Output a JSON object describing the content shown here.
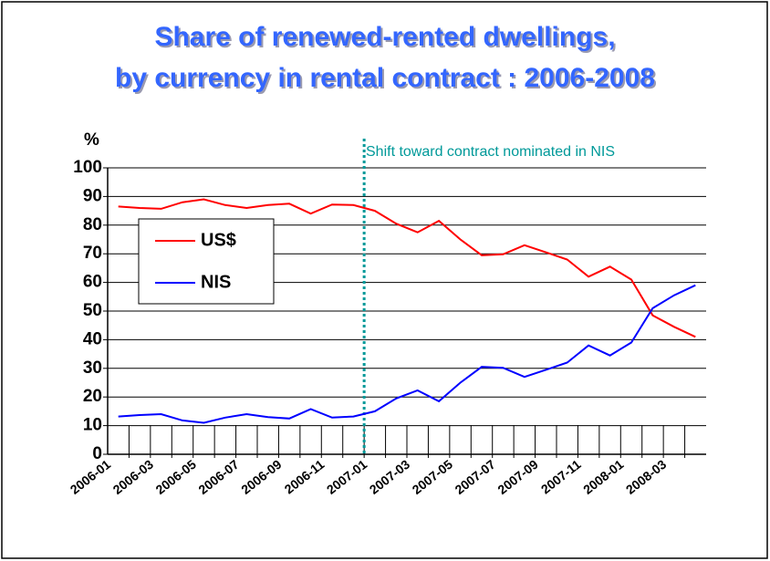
{
  "chart_data": {
    "type": "line",
    "title_lines": [
      "Share of renewed-rented dwellings,",
      "by currency in rental contract : 2006-2008"
    ],
    "y_label": "%",
    "annotation": "Shift toward contract nominated in NIS",
    "categories": [
      "2006-01",
      null,
      "2006-03",
      null,
      "2006-05",
      null,
      "2006-07",
      null,
      "2006-09",
      null,
      "2006-11",
      null,
      "2007-01",
      null,
      "2007-03",
      null,
      "2007-05",
      null,
      "2007-07",
      null,
      "2007-09",
      null,
      "2007-11",
      null,
      "2008-01",
      null,
      "2008-03",
      null
    ],
    "series": [
      {
        "name": "US$",
        "color": "#ff0000",
        "values": [
          86.5,
          86,
          85.7,
          88,
          89,
          87,
          86,
          87,
          87.5,
          84,
          87.2,
          87,
          85,
          80.5,
          77.5,
          81.5,
          75,
          69.5,
          69.8,
          73,
          70.5,
          68,
          62,
          65.5,
          61,
          48.5,
          44.5,
          41
        ]
      },
      {
        "name": "NIS",
        "color": "#0000ff",
        "values": [
          13.2,
          13.7,
          14,
          11.8,
          11,
          12.8,
          14,
          13,
          12.5,
          15.8,
          12.8,
          13.2,
          15,
          19.5,
          22.3,
          18.5,
          25,
          30.5,
          30.2,
          27,
          29.5,
          32,
          38,
          34.5,
          39,
          51,
          55.5,
          59
        ]
      }
    ],
    "ylim": [
      0,
      100
    ],
    "yticks": [
      0,
      10,
      20,
      30,
      40,
      50,
      60,
      70,
      80,
      90,
      100
    ],
    "grid": true
  }
}
